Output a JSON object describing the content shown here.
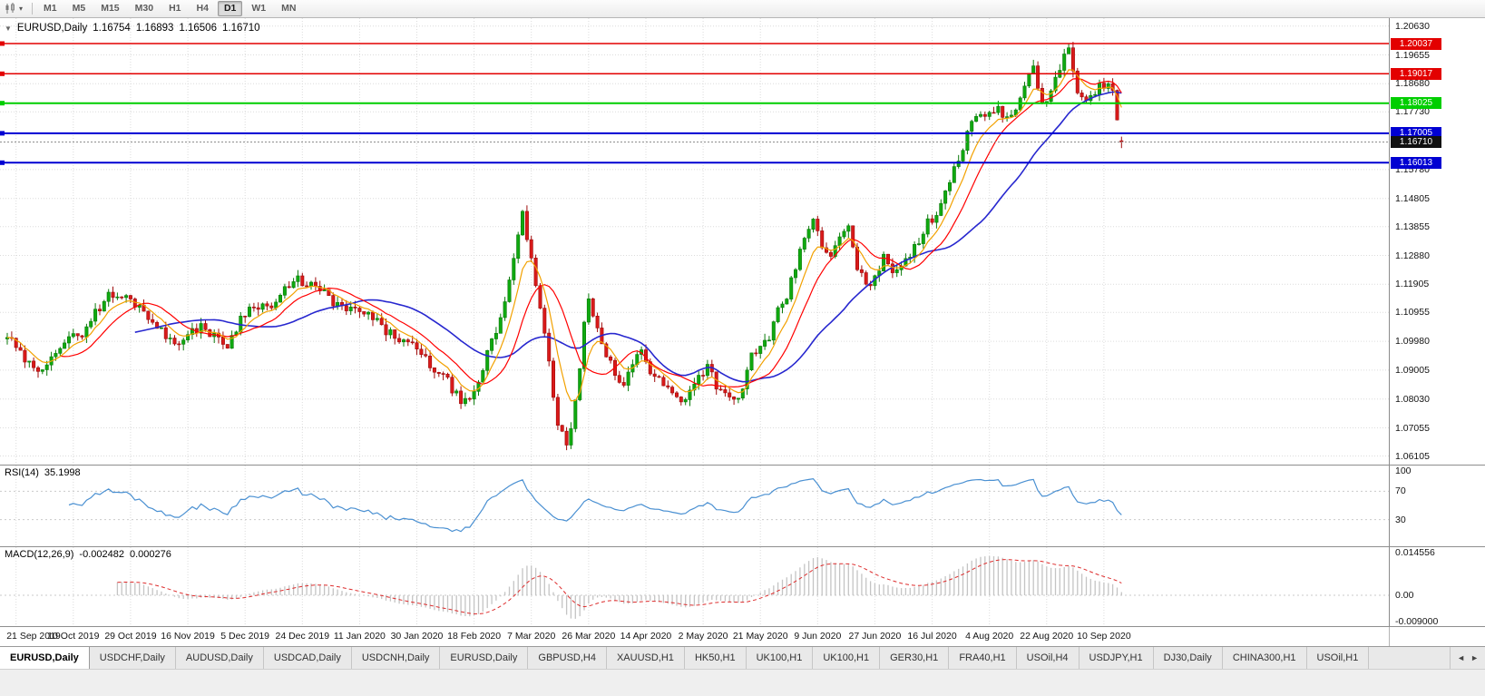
{
  "toolbar": {
    "periods": [
      "M1",
      "M5",
      "M15",
      "M30",
      "H1",
      "H4",
      "D1",
      "W1",
      "MN"
    ],
    "active_period": "D1"
  },
  "chart_header": {
    "symbol": "EURUSD,Daily",
    "open": "1.16754",
    "high": "1.16893",
    "low": "1.16506",
    "close": "1.16710"
  },
  "price_axis": {
    "labels": [
      "1.20630",
      "1.19655",
      "1.18680",
      "1.17730",
      "1.15780",
      "1.14805",
      "1.13855",
      "1.12880",
      "1.11905",
      "1.10955",
      "1.09980",
      "1.09005",
      "1.08030",
      "1.07055",
      "1.06105"
    ],
    "current_price": "1.16710"
  },
  "hlines": [
    {
      "price": 1.20037,
      "label": "1.20037",
      "color": "#E30000",
      "width": 1.5
    },
    {
      "price": 1.19017,
      "label": "1.19017",
      "color": "#E30000",
      "width": 1.5
    },
    {
      "price": 1.18025,
      "label": "1.18025",
      "color": "#00CE00",
      "width": 2
    },
    {
      "price": 1.17005,
      "label": "1.17005",
      "color": "#0000D2",
      "width": 2
    },
    {
      "price": 1.16013,
      "label": "1.16013",
      "color": "#0000D2",
      "width": 2
    }
  ],
  "rsi": {
    "label": "RSI(14)",
    "value": "35.1998",
    "levels": [
      "100",
      "70",
      "30"
    ]
  },
  "macd": {
    "label": "MACD(12,26,9)",
    "value_main": "-0.002482",
    "value_signal": "0.000276",
    "axis": [
      "0.014556",
      "0.00",
      "-0.009000"
    ]
  },
  "time_axis": [
    "21 Sep 2019",
    "10 Oct 2019",
    "29 Oct 2019",
    "16 Nov 2019",
    "5 Dec 2019",
    "24 Dec 2019",
    "11 Jan 2020",
    "30 Jan 2020",
    "18 Feb 2020",
    "7 Mar 2020",
    "26 Mar 2020",
    "14 Apr 2020",
    "2 May 2020",
    "21 May 2020",
    "9 Jun 2020",
    "27 Jun 2020",
    "16 Jul 2020",
    "4 Aug 2020",
    "22 Aug 2020",
    "10 Sep 2020"
  ],
  "tabs": [
    "EURUSD,Daily",
    "USDCHF,Daily",
    "AUDUSD,Daily",
    "USDCAD,Daily",
    "USDCNH,Daily",
    "EURUSD,Daily",
    "GBPUSD,H4",
    "XAUUSD,H1",
    "HK50,H1",
    "UK100,H1",
    "UK100,H1",
    "GER30,H1",
    "FRA40,H1",
    "USOil,H4",
    "USDJPY,H1",
    "DJ30,Daily",
    "CHINA300,H1",
    "USOil,H1"
  ],
  "tabs_active": 0,
  "tab_scroll": {
    "left_arrow": "◄",
    "right_arrow": "►"
  },
  "colors": {
    "candle_up": "#0FA90F",
    "candle_up_border": "#0A7A0A",
    "candle_down": "#D91A1A",
    "candle_down_border": "#9E0B0B",
    "ma_fast": "#F2A100",
    "ma_mid": "#FF0000",
    "ma_slow": "#2727CF",
    "rsi_line": "#4A90D2",
    "macd_hist": "#C4C4C4",
    "macd_signal": "#DD2C2C",
    "grid": "#DCDCDC",
    "current_price_badge": "#111111"
  },
  "chart_data": {
    "type": "candlestick",
    "symbol": "EURUSD",
    "timeframe": "Daily",
    "title": "EURUSD,Daily",
    "last_candle": {
      "o": 1.16754,
      "h": 1.16893,
      "l": 1.16506,
      "c": 1.1671
    },
    "ylim": [
      1.0587,
      1.20896
    ],
    "n_candles": 254,
    "noise_seed": 29,
    "body_noise": 0.0032,
    "wick_noise": 0.0022,
    "close_waypoints": [
      [
        0,
        1.1015
      ],
      [
        3,
        1.0952
      ],
      [
        7,
        1.0885
      ],
      [
        10,
        1.0958
      ],
      [
        13,
        1.0992
      ],
      [
        17,
        1.1028
      ],
      [
        20,
        1.1095
      ],
      [
        23,
        1.1152
      ],
      [
        27,
        1.1145
      ],
      [
        30,
        1.1118
      ],
      [
        33,
        1.1068
      ],
      [
        36,
        1.1012
      ],
      [
        40,
        1.0998
      ],
      [
        44,
        1.1055
      ],
      [
        47,
        1.1012
      ],
      [
        50,
        1.0985
      ],
      [
        53,
        1.1075
      ],
      [
        56,
        1.1125
      ],
      [
        60,
        1.1112
      ],
      [
        63,
        1.1168
      ],
      [
        66,
        1.1205
      ],
      [
        69,
        1.1188
      ],
      [
        72,
        1.1158
      ],
      [
        75,
        1.1118
      ],
      [
        78,
        1.1102
      ],
      [
        82,
        1.1088
      ],
      [
        86,
        1.1032
      ],
      [
        90,
        1.0998
      ],
      [
        93,
        1.0968
      ],
      [
        96,
        1.0918
      ],
      [
        100,
        1.0862
      ],
      [
        103,
        1.0792
      ],
      [
        105,
        1.0788
      ],
      [
        107,
        1.0852
      ],
      [
        109,
        1.0962
      ],
      [
        111,
        1.1032
      ],
      [
        113,
        1.1132
      ],
      [
        115,
        1.1282
      ],
      [
        117,
        1.1448
      ],
      [
        118,
        1.1355
      ],
      [
        119,
        1.1278
      ],
      [
        120,
        1.1175
      ],
      [
        121,
        1.1098
      ],
      [
        122,
        1.1018
      ],
      [
        123,
        1.0918
      ],
      [
        124,
        1.0818
      ],
      [
        125,
        1.0722
      ],
      [
        127,
        1.0648
      ],
      [
        128,
        1.0702
      ],
      [
        129,
        1.0788
      ],
      [
        131,
        1.1048
      ],
      [
        132,
        1.1138
      ],
      [
        134,
        1.1028
      ],
      [
        136,
        1.0958
      ],
      [
        138,
        1.0878
      ],
      [
        140,
        1.0852
      ],
      [
        142,
        1.0918
      ],
      [
        144,
        1.0978
      ],
      [
        146,
        1.0898
      ],
      [
        148,
        1.0868
      ],
      [
        151,
        1.0822
      ],
      [
        153,
        1.0792
      ],
      [
        155,
        1.0838
      ],
      [
        157,
        1.0878
      ],
      [
        159,
        1.0918
      ],
      [
        161,
        1.0852
      ],
      [
        163,
        1.0812
      ],
      [
        165,
        1.0792
      ],
      [
        167,
        1.0832
      ],
      [
        169,
        1.0958
      ],
      [
        171,
        1.0978
      ],
      [
        173,
        1.0998
      ],
      [
        175,
        1.1098
      ],
      [
        177,
        1.1148
      ],
      [
        179,
        1.1248
      ],
      [
        181,
        1.1348
      ],
      [
        183,
        1.1422
      ],
      [
        185,
        1.1302
      ],
      [
        187,
        1.1288
      ],
      [
        189,
        1.1348
      ],
      [
        191,
        1.1378
      ],
      [
        193,
        1.1252
      ],
      [
        195,
        1.1178
      ],
      [
        197,
        1.1222
      ],
      [
        199,
        1.1278
      ],
      [
        201,
        1.1232
      ],
      [
        203,
        1.1268
      ],
      [
        205,
        1.1292
      ],
      [
        207,
        1.1328
      ],
      [
        209,
        1.1398
      ],
      [
        211,
        1.1432
      ],
      [
        213,
        1.1508
      ],
      [
        215,
        1.1588
      ],
      [
        217,
        1.1648
      ],
      [
        219,
        1.1738
      ],
      [
        221,
        1.1778
      ],
      [
        223,
        1.1758
      ],
      [
        225,
        1.1798
      ],
      [
        227,
        1.1742
      ],
      [
        229,
        1.1788
      ],
      [
        231,
        1.1848
      ],
      [
        233,
        1.1928
      ],
      [
        235,
        1.1798
      ],
      [
        237,
        1.1838
      ],
      [
        239,
        1.1928
      ],
      [
        241,
        1.1988
      ],
      [
        242,
        1.1912
      ],
      [
        243,
        1.1852
      ],
      [
        244,
        1.1822
      ],
      [
        245,
        1.1798
      ],
      [
        246,
        1.1822
      ],
      [
        248,
        1.1862
      ],
      [
        250,
        1.1858
      ],
      [
        251,
        1.1848
      ],
      [
        252,
        1.1758
      ],
      [
        253,
        1.1671
      ]
    ],
    "overlays": [
      {
        "name": "MA-fast",
        "type": "ema",
        "period": 7
      },
      {
        "name": "MA-mid",
        "type": "sma",
        "period": 13
      },
      {
        "name": "MA-slow",
        "type": "sma",
        "period": 30
      }
    ],
    "indicators": [
      {
        "name": "RSI",
        "period": 14,
        "current": 35.1998,
        "levels": [
          100,
          70,
          30
        ]
      },
      {
        "name": "MACD",
        "fast": 12,
        "slow": 26,
        "signal": 9,
        "current_main": -0.002482,
        "current_signal": 0.000276,
        "axis_max": 0.014556,
        "axis_min": -0.009
      }
    ]
  }
}
